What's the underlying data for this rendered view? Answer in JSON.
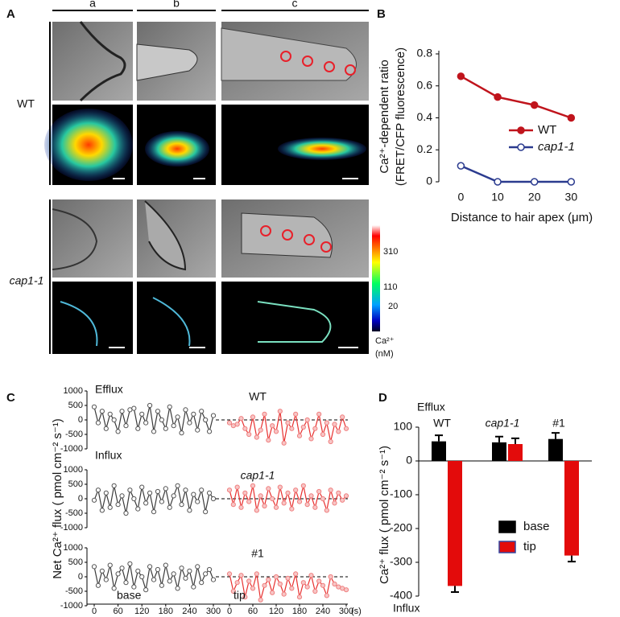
{
  "panel_a": {
    "panel": "A",
    "columns": [
      "a",
      "b",
      "c"
    ],
    "rows": [
      "WT",
      "cap1-1"
    ],
    "colorbar": {
      "ticks": [
        "310",
        "110",
        "20"
      ],
      "unit_lines": [
        "Ca²⁺",
        "(nM)"
      ]
    }
  },
  "chart_data": [
    {
      "type": "line",
      "panel": "B",
      "ylabel": [
        "Ca²⁺-dependent ratio",
        "(FRET/CFP fluorescence)"
      ],
      "xlabel": "Distance to hair apex (μm)",
      "x": [
        0,
        10,
        20,
        30
      ],
      "xlim": [
        -6,
        40
      ],
      "xticks": [
        0,
        10,
        20,
        30
      ],
      "ylim": [
        0,
        0.8
      ],
      "yticks": [
        0,
        0.2,
        0.4,
        0.6,
        0.8
      ],
      "legend": "right",
      "series": [
        {
          "name": "WT",
          "color": "#c0141c",
          "values": [
            0.66,
            0.53,
            0.48,
            0.4
          ]
        },
        {
          "name": "cap1-1",
          "color": "#2b3b8f",
          "values": [
            0.1,
            0,
            0,
            0
          ]
        }
      ]
    },
    {
      "type": "trace",
      "panel": "C",
      "ylabel": "Net Ca²⁺ flux ( pmol cm⁻² s⁻¹)",
      "xunit": "(s)",
      "efflux": "Efflux",
      "influx": "Influx",
      "segment_labels": [
        "base",
        "tip"
      ],
      "x": [
        0,
        10,
        20,
        30,
        40,
        50,
        60,
        70,
        80,
        90,
        100,
        110,
        120,
        130,
        140,
        150,
        160,
        170,
        180,
        190,
        200,
        210,
        220,
        230,
        240,
        250,
        260,
        270,
        280,
        290,
        300
      ],
      "xlim": [
        0,
        300
      ],
      "xticks": [
        0,
        60,
        120,
        180,
        240,
        300
      ],
      "ylim": [
        -1000,
        1000
      ],
      "yticks": [
        1000,
        500,
        0,
        -500,
        -1000
      ],
      "subplots": [
        {
          "title": "WT",
          "series": [
            {
              "color": "#3a3a3a",
              "values": [
                450,
                -100,
                300,
                -300,
                200,
                0,
                -400,
                300,
                -200,
                350,
                400,
                -300,
                200,
                -100,
                500,
                -400,
                300,
                0,
                -300,
                450,
                -200,
                100,
                -450,
                350,
                -100,
                200,
                -350,
                300,
                0,
                -400,
                150
              ]
            },
            {
              "color": "#e8302f",
              "values": [
                -100,
                -200,
                -150,
                50,
                -300,
                -500,
                100,
                -600,
                -350,
                200,
                -700,
                -200,
                -400,
                300,
                -800,
                -100,
                -300,
                200,
                -550,
                -250,
                0,
                -650,
                -300,
                200,
                -500,
                -100,
                -750,
                -150,
                -400,
                100,
                -300
              ]
            }
          ]
        },
        {
          "title": "cap1-1",
          "series": [
            {
              "color": "#3a3a3a",
              "values": [
                -50,
                300,
                -400,
                200,
                -300,
                450,
                -200,
                100,
                -500,
                300,
                0,
                -350,
                400,
                -150,
                200,
                -450,
                250,
                -100,
                350,
                -300,
                100,
                450,
                -200,
                300,
                -400,
                150,
                -100,
                300,
                -450,
                200,
                0
              ]
            },
            {
              "color": "#e8302f",
              "values": [
                300,
                -200,
                400,
                -300,
                200,
                -100,
                450,
                -400,
                100,
                -250,
                350,
                0,
                -300,
                400,
                -150,
                200,
                -350,
                300,
                -100,
                450,
                -200,
                100,
                -300,
                250,
                0,
                -400,
                300,
                -150,
                200,
                -50,
                100
              ]
            }
          ]
        },
        {
          "title": "#1",
          "series": [
            {
              "color": "#3a3a3a",
              "values": [
                350,
                -300,
                200,
                -100,
                400,
                -400,
                100,
                300,
                -200,
                450,
                -350,
                200,
                0,
                -450,
                350,
                -100,
                250,
                -300,
                400,
                -150,
                100,
                -400,
                300,
                -50,
                200,
                -350,
                350,
                -200,
                100,
                250,
                -100
              ]
            },
            {
              "color": "#e8302f",
              "values": [
                100,
                -500,
                -200,
                50,
                -700,
                -150,
                -400,
                100,
                -800,
                -300,
                -100,
                -550,
                0,
                -250,
                -600,
                -50,
                -400,
                100,
                -700,
                -200,
                -350,
                50,
                -500,
                -150,
                -300,
                -650,
                0,
                -250,
                -350,
                -400,
                -450
              ]
            }
          ]
        }
      ]
    },
    {
      "type": "bar",
      "panel": "D",
      "ylabel": "Ca²⁺ flux ( pmol cm⁻² s⁻¹)",
      "efflux": "Efflux",
      "influx": "Influx",
      "categories": [
        "WT",
        "cap1-1",
        "#1"
      ],
      "ylim": [
        -400,
        100
      ],
      "yticks": [
        100,
        0,
        -100,
        -200,
        -300,
        -400
      ],
      "legend": "center right",
      "series": [
        {
          "name": "base",
          "color": "#000000",
          "values": [
            58,
            55,
            65
          ],
          "errors": [
            18,
            17,
            18
          ]
        },
        {
          "name": "tip",
          "color": "#e30b0b",
          "values": [
            -370,
            50,
            -280
          ],
          "errors": [
            18,
            17,
            18
          ]
        }
      ]
    }
  ]
}
